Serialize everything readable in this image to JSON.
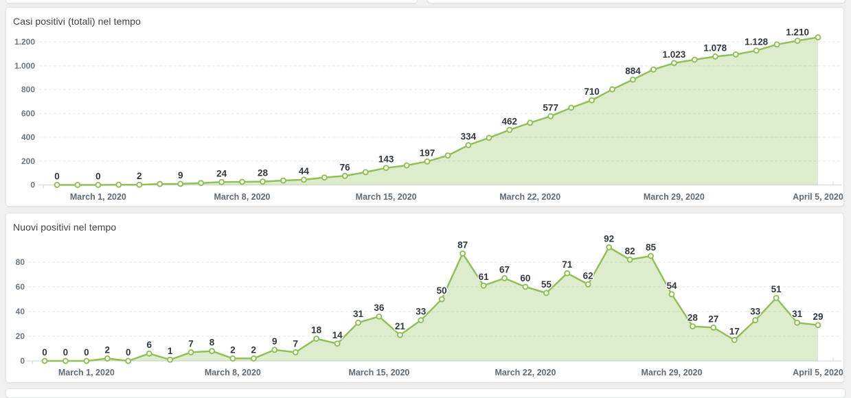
{
  "page": {
    "background_color": "#f0f0f0",
    "card_color": "#ffffff",
    "accent_green": "#8fc157"
  },
  "chart_data": [
    {
      "type": "area",
      "title": "Casi positivi (totali) nel tempo",
      "legend": "none",
      "grid": "dashed-horizontal",
      "xlabel": "",
      "ylabel": "",
      "ylim": [
        0,
        1200
      ],
      "x_tick_labels": [
        "March 1, 2020",
        "March 8, 2020",
        "March 15, 2020",
        "March 22, 2020",
        "March 29, 2020",
        "April 5, 2020"
      ],
      "x_tick_indices": [
        2,
        9,
        16,
        23,
        30,
        37
      ],
      "y_tick_values": [
        0,
        200,
        400,
        600,
        800,
        1000,
        1200
      ],
      "y_tick_labels": [
        "0",
        "200",
        "400",
        "600",
        "800",
        "1.000",
        "1.200"
      ],
      "values": [
        0,
        0,
        0,
        2,
        2,
        8,
        9,
        16,
        24,
        26,
        28,
        37,
        44,
        62,
        76,
        107,
        143,
        164,
        197,
        247,
        334,
        395,
        462,
        522,
        577,
        648,
        710,
        802,
        884,
        969,
        1023,
        1051,
        1078,
        1095,
        1128,
        1179,
        1210,
        1239
      ],
      "point_labels": [
        "0",
        null,
        "0",
        null,
        "2",
        null,
        "9",
        null,
        "24",
        null,
        "28",
        null,
        "44",
        null,
        "76",
        null,
        "143",
        null,
        "197",
        null,
        "334",
        null,
        "462",
        null,
        "577",
        null,
        "710",
        null,
        "884",
        null,
        "1.023",
        null,
        "1.078",
        null,
        "1.128",
        null,
        "1.210",
        null
      ],
      "colors": {
        "line": "#8fc157",
        "fill": "rgba(143,193,87,0.3)",
        "marker_fill": "#ffffff",
        "data_label": "#31383e",
        "axis_label": "#5f6b76",
        "grid_line": "#e6e8ea",
        "axis_line": "#cfd6da"
      }
    },
    {
      "type": "area",
      "title": "Nuovi positivi nel tempo",
      "legend": "none",
      "grid": "dashed-horizontal",
      "xlabel": "",
      "ylabel": "",
      "ylim": [
        0,
        80
      ],
      "x_tick_labels": [
        "March 1, 2020",
        "March 8, 2020",
        "March 15, 2020",
        "March 22, 2020",
        "March 29, 2020",
        "April 5, 2020"
      ],
      "x_tick_indices": [
        2,
        9,
        16,
        23,
        30,
        37
      ],
      "y_tick_values": [
        0,
        20,
        40,
        60,
        80
      ],
      "y_tick_labels": [
        "0",
        "20",
        "40",
        "60",
        "80"
      ],
      "values": [
        0,
        0,
        0,
        2,
        0,
        6,
        1,
        7,
        8,
        2,
        2,
        9,
        7,
        18,
        14,
        31,
        36,
        21,
        33,
        50,
        87,
        61,
        67,
        60,
        55,
        71,
        62,
        92,
        82,
        85,
        54,
        28,
        27,
        17,
        33,
        51,
        31,
        29
      ],
      "point_labels": [
        "0",
        "0",
        "0",
        "2",
        "0",
        "6",
        "1",
        "7",
        "8",
        "2",
        "2",
        "9",
        "7",
        "18",
        "14",
        "31",
        "36",
        "21",
        "33",
        "50",
        "87",
        "61",
        "67",
        "60",
        "55",
        "71",
        "62",
        "92",
        "82",
        "85",
        "54",
        "28",
        "27",
        "17",
        "33",
        "51",
        "31",
        "29"
      ],
      "colors": {
        "line": "#8fc157",
        "fill": "rgba(143,193,87,0.3)",
        "marker_fill": "#ffffff",
        "data_label": "#31383e",
        "axis_label": "#5f6b76",
        "grid_line": "#e6e8ea",
        "axis_line": "#cfd6da"
      }
    }
  ]
}
